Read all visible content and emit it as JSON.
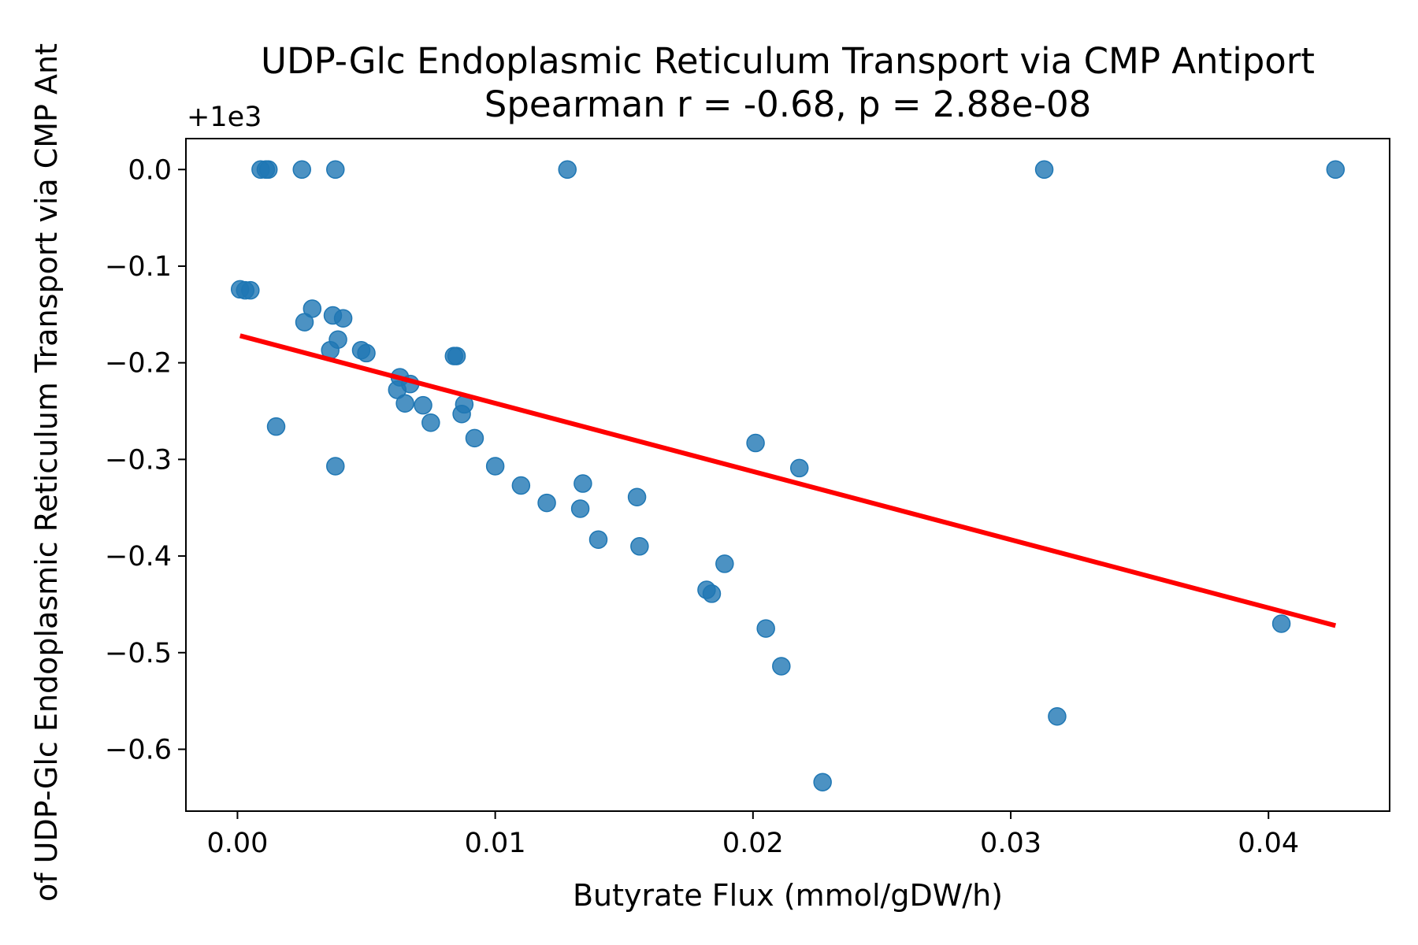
{
  "chart_data": {
    "type": "scatter",
    "title": "UDP-Glc Endoplasmic Reticulum Transport via CMP Antiport",
    "subtitle": "Spearman r = -0.68, p = 2.88e-08",
    "xlabel": "Butyrate Flux (mmol/gDW/h)",
    "ylabel": "of UDP-Glc Endoplasmic Reticulum Transport via CMP Ant",
    "y_offset_label": "+1e3",
    "xlim": [
      -0.002,
      0.0447
    ],
    "ylim": [
      -0.664,
      0.032
    ],
    "x_ticks": [
      0.0,
      0.01,
      0.02,
      0.03,
      0.04
    ],
    "x_tick_labels": [
      "0.00",
      "0.01",
      "0.02",
      "0.03",
      "0.04"
    ],
    "y_ticks": [
      0.0,
      -0.1,
      -0.2,
      -0.3,
      -0.4,
      -0.5,
      -0.6
    ],
    "y_tick_labels": [
      "0.0",
      "−0.1",
      "−0.2",
      "−0.3",
      "−0.4",
      "−0.5",
      "−0.6"
    ],
    "grid": false,
    "point_color": "#1f77b4",
    "fit_color": "#ff0000",
    "points": [
      {
        "x": 0.0009,
        "y": 0.0
      },
      {
        "x": 0.0011,
        "y": 0.0
      },
      {
        "x": 0.0012,
        "y": 0.0
      },
      {
        "x": 0.0025,
        "y": 0.0
      },
      {
        "x": 0.0038,
        "y": 0.0
      },
      {
        "x": 0.0128,
        "y": 0.0
      },
      {
        "x": 0.0313,
        "y": 0.0
      },
      {
        "x": 0.0426,
        "y": 0.0
      },
      {
        "x": 0.0001,
        "y": -0.124
      },
      {
        "x": 0.0003,
        "y": -0.125
      },
      {
        "x": 0.0005,
        "y": -0.125
      },
      {
        "x": 0.0029,
        "y": -0.144
      },
      {
        "x": 0.0026,
        "y": -0.158
      },
      {
        "x": 0.0037,
        "y": -0.151
      },
      {
        "x": 0.0041,
        "y": -0.154
      },
      {
        "x": 0.0039,
        "y": -0.176
      },
      {
        "x": 0.0036,
        "y": -0.187
      },
      {
        "x": 0.0048,
        "y": -0.187
      },
      {
        "x": 0.005,
        "y": -0.19
      },
      {
        "x": 0.0084,
        "y": -0.193
      },
      {
        "x": 0.0085,
        "y": -0.193
      },
      {
        "x": 0.0015,
        "y": -0.266
      },
      {
        "x": 0.0038,
        "y": -0.307
      },
      {
        "x": 0.0063,
        "y": -0.215
      },
      {
        "x": 0.0067,
        "y": -0.222
      },
      {
        "x": 0.0062,
        "y": -0.228
      },
      {
        "x": 0.0065,
        "y": -0.242
      },
      {
        "x": 0.0072,
        "y": -0.244
      },
      {
        "x": 0.0075,
        "y": -0.262
      },
      {
        "x": 0.0088,
        "y": -0.243
      },
      {
        "x": 0.0087,
        "y": -0.253
      },
      {
        "x": 0.0092,
        "y": -0.278
      },
      {
        "x": 0.01,
        "y": -0.307
      },
      {
        "x": 0.011,
        "y": -0.327
      },
      {
        "x": 0.012,
        "y": -0.345
      },
      {
        "x": 0.0134,
        "y": -0.325
      },
      {
        "x": 0.0133,
        "y": -0.351
      },
      {
        "x": 0.014,
        "y": -0.383
      },
      {
        "x": 0.0155,
        "y": -0.339
      },
      {
        "x": 0.0156,
        "y": -0.39
      },
      {
        "x": 0.0189,
        "y": -0.408
      },
      {
        "x": 0.0182,
        "y": -0.435
      },
      {
        "x": 0.0184,
        "y": -0.439
      },
      {
        "x": 0.0201,
        "y": -0.283
      },
      {
        "x": 0.0218,
        "y": -0.309
      },
      {
        "x": 0.0205,
        "y": -0.475
      },
      {
        "x": 0.0211,
        "y": -0.514
      },
      {
        "x": 0.0227,
        "y": -0.634
      },
      {
        "x": 0.0318,
        "y": -0.566
      },
      {
        "x": 0.0405,
        "y": -0.47
      }
    ],
    "fit_line": {
      "x": [
        0.0001,
        0.0426
      ],
      "y": [
        -0.172,
        -0.472
      ]
    }
  }
}
